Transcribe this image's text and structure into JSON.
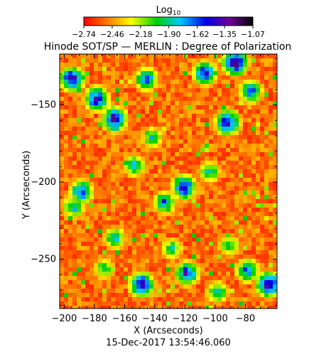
{
  "chart_data": {
    "type": "heatmap",
    "title": "Hinode SOT/SP — MERLIN : Degree of Polarization",
    "xlabel": "X (Arcseconds)",
    "ylabel": "Y (Arcseconds)",
    "xlim": [
      -203,
      -59
    ],
    "ylim": [
      -282,
      -117
    ],
    "x_ticks": [
      -200,
      -180,
      -160,
      -140,
      -120,
      -100,
      -80
    ],
    "y_ticks": [
      -150,
      -200,
      -250
    ],
    "x_tick_labels": [
      "−200",
      "−180",
      "−160",
      "−140",
      "−120",
      "−100",
      "−80"
    ],
    "y_tick_labels": [
      "−150",
      "−200",
      "−250"
    ],
    "timestamp": "15-Dec-2017 13:54:46.060",
    "colorbar": {
      "label_base": "Log",
      "label_sub": "10",
      "scale": "log10",
      "range": [
        -2.74,
        -1.07
      ],
      "ticks": [
        -2.74,
        -2.46,
        -2.18,
        -1.9,
        -1.62,
        -1.35,
        -1.07
      ],
      "tick_labels": [
        "−2.74",
        "−2.46",
        "−2.18",
        "−1.90",
        "−1.62",
        "−1.35",
        "−1.07"
      ],
      "colors": [
        "#ff0000",
        "#ff7a00",
        "#ffff00",
        "#00d000",
        "#00c8ff",
        "#0000e6",
        "#70009a",
        "#000000"
      ]
    },
    "grid": false,
    "legend": "colorbar-top",
    "polarized_patches": [
      {
        "x": -196,
        "y": -132,
        "strength": 0.95
      },
      {
        "x": -180,
        "y": -145,
        "strength": 0.9
      },
      {
        "x": -168,
        "y": -158,
        "strength": 0.95
      },
      {
        "x": -147,
        "y": -132,
        "strength": 0.75
      },
      {
        "x": -108,
        "y": -128,
        "strength": 0.85
      },
      {
        "x": -88,
        "y": -121,
        "strength": 1.0
      },
      {
        "x": -93,
        "y": -160,
        "strength": 0.9
      },
      {
        "x": -78,
        "y": -140,
        "strength": 0.75
      },
      {
        "x": -155,
        "y": -188,
        "strength": 0.6
      },
      {
        "x": -190,
        "y": -205,
        "strength": 0.8
      },
      {
        "x": -122,
        "y": -202,
        "strength": 0.9
      },
      {
        "x": -135,
        "y": -212,
        "strength": 0.7
      },
      {
        "x": -143,
        "y": -170,
        "strength": 0.55
      },
      {
        "x": -105,
        "y": -192,
        "strength": 0.55
      },
      {
        "x": -168,
        "y": -235,
        "strength": 0.6
      },
      {
        "x": -150,
        "y": -265,
        "strength": 0.9
      },
      {
        "x": -120,
        "y": -258,
        "strength": 0.85
      },
      {
        "x": -80,
        "y": -256,
        "strength": 0.75
      },
      {
        "x": -66,
        "y": -265,
        "strength": 0.95
      },
      {
        "x": -195,
        "y": -215,
        "strength": 0.6
      },
      {
        "x": -92,
        "y": -240,
        "strength": 0.5
      },
      {
        "x": -130,
        "y": -242,
        "strength": 0.5
      },
      {
        "x": -100,
        "y": -270,
        "strength": 0.6
      },
      {
        "x": -175,
        "y": -255,
        "strength": 0.5
      }
    ]
  }
}
